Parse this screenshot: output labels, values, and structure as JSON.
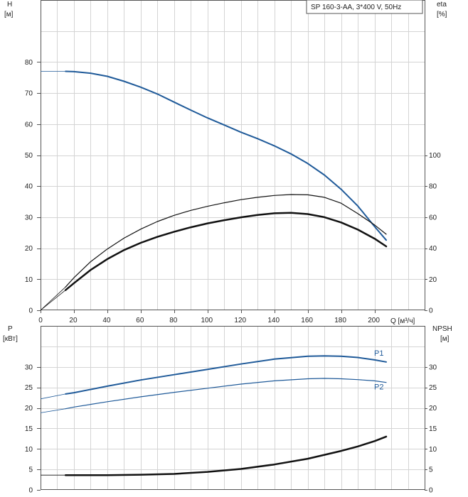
{
  "colors": {
    "blue": "#1f5a99",
    "black": "#111111",
    "grid": "#d4d4d4"
  },
  "chart_data": [
    {
      "type": "line",
      "title": "SP 160-3-AA, 3*400 V, 50Hz",
      "xlabel": "Q [м³/ч]",
      "ylabel_line1": "H",
      "ylabel_line2": "[м]",
      "y2label_line1": "eta",
      "y2label_line2": "[%]",
      "xlim": [
        0,
        230
      ],
      "ylim": [
        0,
        100
      ],
      "y2lim": [
        0,
        200
      ],
      "x_ticks": [
        0,
        20,
        40,
        60,
        80,
        100,
        120,
        140,
        160,
        180,
        200
      ],
      "y_ticks": [
        0,
        10,
        20,
        30,
        40,
        50,
        60,
        70,
        80
      ],
      "y2_ticks": [
        0,
        20,
        40,
        60,
        80,
        100
      ],
      "grid": true,
      "series": [
        {
          "color": "blue",
          "width": 2,
          "axis": "y",
          "x": [
            15,
            20,
            30,
            40,
            50,
            60,
            70,
            80,
            90,
            100,
            110,
            120,
            130,
            140,
            150,
            160,
            170,
            180,
            190,
            200,
            207
          ],
          "y": [
            77,
            76.9,
            76.4,
            75.4,
            73.8,
            71.9,
            69.7,
            67.1,
            64.5,
            62,
            59.7,
            57.4,
            55.3,
            53,
            50.4,
            47.3,
            43.6,
            39,
            33.6,
            27,
            22.6
          ],
          "ext_x": [
            0,
            15
          ],
          "ext_y": [
            77,
            77
          ]
        },
        {
          "color": "black",
          "width": 1.2,
          "axis": "y2",
          "x": [
            15,
            20,
            30,
            40,
            50,
            60,
            70,
            80,
            90,
            100,
            110,
            120,
            130,
            140,
            150,
            160,
            170,
            180,
            190,
            200,
            207
          ],
          "y": [
            15,
            21,
            31.3,
            39.5,
            46.5,
            52.3,
            57.2,
            61.2,
            64.4,
            67,
            69.3,
            71.3,
            72.8,
            74,
            74.6,
            74.4,
            72.8,
            69,
            62.3,
            55,
            49
          ],
          "ext_x": [
            0,
            15
          ],
          "ext_y": [
            0,
            15
          ]
        },
        {
          "color": "black",
          "width": 2.5,
          "axis": "y2",
          "x": [
            15,
            20,
            30,
            40,
            50,
            60,
            70,
            80,
            90,
            100,
            110,
            120,
            130,
            140,
            150,
            160,
            170,
            180,
            190,
            200,
            207
          ],
          "y": [
            13,
            17.5,
            26,
            33,
            38.8,
            43.5,
            47.3,
            50.6,
            53.5,
            56,
            58.1,
            59.9,
            61.4,
            62.5,
            62.8,
            62,
            60,
            56.6,
            52,
            46.2,
            41.2
          ],
          "ext_x": [
            0,
            15
          ],
          "ext_y": [
            0,
            13
          ]
        }
      ]
    },
    {
      "type": "line",
      "ylabel_line1": "P",
      "ylabel_line2": "[кВт]",
      "y2label_line1": "NPSH",
      "y2label_line2": "[м]",
      "xlim": [
        0,
        230
      ],
      "ylim": [
        0,
        40
      ],
      "y2lim": [
        0,
        40
      ],
      "y_ticks": [
        0,
        5,
        10,
        15,
        20,
        25,
        30
      ],
      "y2_ticks": [
        0,
        5,
        10,
        15,
        20,
        25,
        30
      ],
      "grid": true,
      "series": [
        {
          "name": "P1",
          "color": "blue",
          "width": 2,
          "axis": "y",
          "x": [
            15,
            20,
            40,
            60,
            80,
            100,
            120,
            140,
            160,
            170,
            180,
            190,
            200,
            207
          ],
          "y": [
            23.4,
            23.7,
            25.3,
            26.8,
            28.1,
            29.4,
            30.7,
            31.9,
            32.6,
            32.7,
            32.6,
            32.3,
            31.7,
            31.2
          ],
          "ext_x": [
            0,
            15
          ],
          "ext_y": [
            22.2,
            23.4
          ]
        },
        {
          "name": "P2",
          "color": "blue",
          "width": 1.2,
          "axis": "y",
          "x": [
            15,
            20,
            40,
            60,
            80,
            100,
            120,
            140,
            160,
            170,
            180,
            190,
            200,
            207
          ],
          "y": [
            19.8,
            20.2,
            21.5,
            22.7,
            23.8,
            24.8,
            25.8,
            26.6,
            27.1,
            27.2,
            27.1,
            26.9,
            26.6,
            26.2
          ],
          "ext_x": [
            0,
            15
          ],
          "ext_y": [
            18.8,
            19.8
          ]
        },
        {
          "color": "black",
          "width": 2.5,
          "axis": "y2",
          "x": [
            15,
            20,
            40,
            60,
            80,
            100,
            120,
            140,
            160,
            180,
            190,
            200,
            207
          ],
          "y": [
            3.6,
            3.6,
            3.6,
            3.7,
            3.9,
            4.4,
            5.1,
            6.2,
            7.6,
            9.5,
            10.6,
            11.9,
            13
          ],
          "ext_x": [
            0,
            15
          ],
          "ext_y": [
            3.6,
            3.6
          ]
        }
      ]
    }
  ]
}
